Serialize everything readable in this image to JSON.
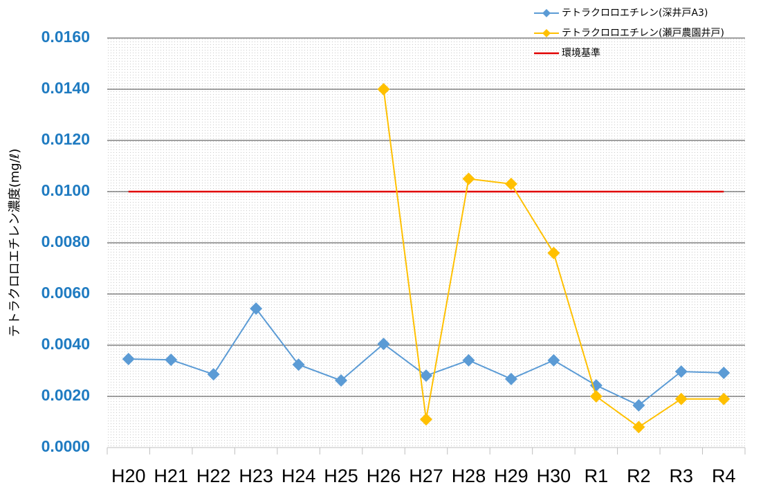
{
  "chart_data": {
    "type": "line",
    "y_label": "テトラクロロエチレン濃度(mg/ℓ)",
    "categories": [
      "H20",
      "H21",
      "H22",
      "H23",
      "H24",
      "H25",
      "H26",
      "H27",
      "H28",
      "H29",
      "H30",
      "R1",
      "R2",
      "R3",
      "R4"
    ],
    "series": [
      {
        "name": "テトラクロロエチレン(深井戸A3)",
        "color": "#5b9bd5",
        "marker": "diamond",
        "values": [
          0.00346,
          0.00343,
          0.00286,
          0.00543,
          0.00324,
          0.00262,
          0.00405,
          0.00281,
          0.00341,
          0.00268,
          0.00341,
          0.00243,
          0.00165,
          0.00297,
          0.00292
        ]
      },
      {
        "name": "テトラクロロエチレン(瀬戸農園井戸)",
        "color": "#ffc000",
        "marker": "diamond",
        "values": [
          null,
          null,
          null,
          null,
          null,
          null,
          0.014,
          0.0011,
          0.0105,
          0.0103,
          0.0076,
          0.002,
          0.0008,
          0.0019,
          0.0019
        ]
      }
    ],
    "reference_line": {
      "name": "環境基準",
      "value": 0.01,
      "color": "#e00000"
    },
    "ylim": [
      0,
      0.016
    ],
    "yticks": [
      {
        "value": 0,
        "label": "0.0000"
      },
      {
        "value": 0.002,
        "label": "0.0020"
      },
      {
        "value": 0.004,
        "label": "0.0040"
      },
      {
        "value": 0.006,
        "label": "0.0060"
      },
      {
        "value": 0.008,
        "label": "0.0080"
      },
      {
        "value": 0.01,
        "label": "0.0100"
      },
      {
        "value": 0.012,
        "label": "0.0120"
      },
      {
        "value": 0.014,
        "label": "0.0140"
      },
      {
        "value": 0.016,
        "label": "0.0160"
      }
    ],
    "grid": true,
    "legend": "top-right"
  }
}
